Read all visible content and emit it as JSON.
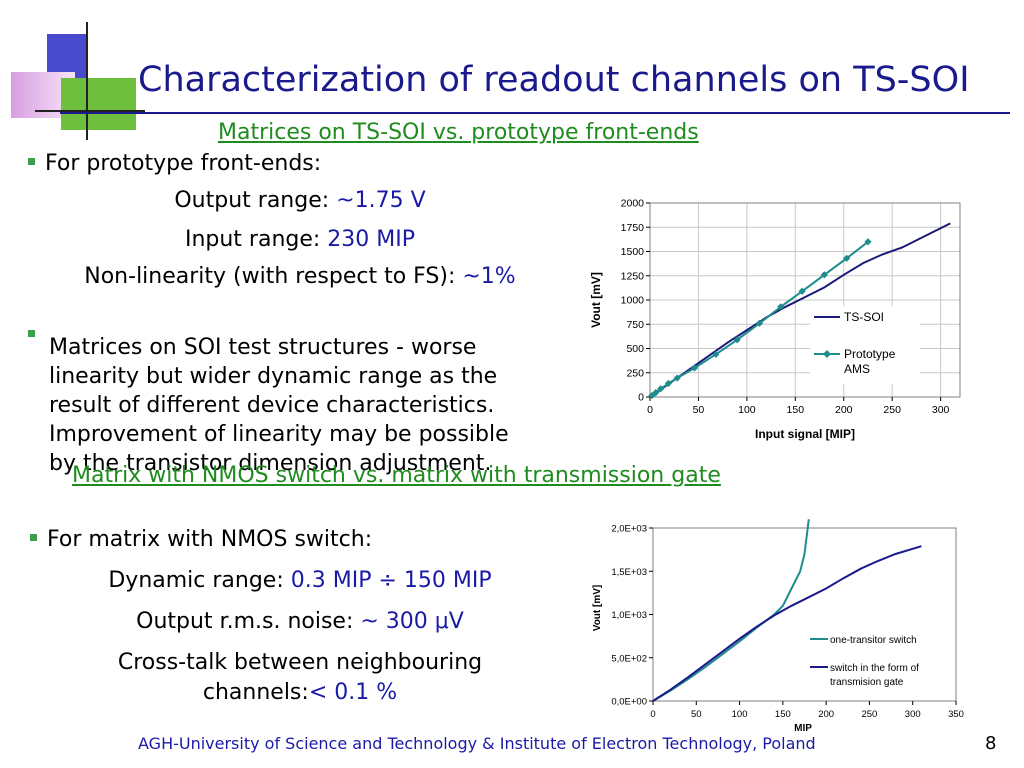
{
  "slide": {
    "title": "Characterization of readout channels on TS-SOI",
    "footer": "AGH-University of Science and Technology & Institute of Electron Technology, Poland",
    "page_number": "8"
  },
  "section1": {
    "heading": "Matrices on TS-SOI vs. prototype front-ends",
    "bullet1": "For prototype front-ends:",
    "output_range_label": "Output range: ",
    "output_range_value": "~1.75 V",
    "input_range_label": "Input range: ",
    "input_range_value": "230 MIP",
    "nonlinearity_label": "Non-linearity (with respect to FS): ",
    "nonlinearity_value": "~1%",
    "bullet2_lines": [
      "Matrices on SOI test structures - worse",
      "linearity but wider dynamic range as the",
      "result of different device characteristics.",
      "Improvement of linearity may be possible",
      "by the transistor dimension adjustment."
    ]
  },
  "section2": {
    "heading": "Matrix with NMOS switch vs. matrix with transmission gate",
    "bullet1": "For matrix with NMOS switch:",
    "dynamic_range_label": "Dynamic range: ",
    "dynamic_range_value": "0.3 MIP ÷ 150 MIP",
    "noise_label": "Output r.m.s. noise: ",
    "noise_value": "~ 300 μV",
    "crosstalk_line1": "Cross-talk between neighbouring",
    "crosstalk_label": "channels:",
    "crosstalk_value": "< 0.1 %"
  },
  "chart_data": [
    {
      "type": "line",
      "xlabel": "Input signal [MIP]",
      "ylabel": "Vout  [mV]",
      "xlim": [
        0,
        320
      ],
      "ylim": [
        0,
        2000
      ],
      "x_ticks": [
        "0",
        "50",
        "100",
        "150",
        "200",
        "250",
        "300"
      ],
      "y_ticks": [
        "0",
        "250",
        "500",
        "750",
        "1000",
        "1250",
        "1500",
        "1750",
        "2000"
      ],
      "grid": true,
      "legend_position": "right",
      "series": [
        {
          "name": "TS-SOI",
          "color": "#1a1a7a",
          "marker": "none",
          "x": [
            0,
            10,
            20,
            40,
            60,
            80,
            100,
            120,
            140,
            160,
            180,
            200,
            220,
            240,
            260,
            280,
            310
          ],
          "y": [
            0,
            70,
            140,
            280,
            420,
            560,
            690,
            820,
            930,
            1030,
            1130,
            1260,
            1380,
            1470,
            1540,
            1640,
            1790
          ]
        },
        {
          "name": "Prototype AMS",
          "color": "#1e8c8c",
          "marker": "diamond",
          "x": [
            2,
            6,
            11,
            19,
            28,
            46,
            68,
            90,
            113,
            135,
            157,
            180,
            203,
            225
          ],
          "y": [
            15,
            45,
            85,
            140,
            195,
            300,
            440,
            590,
            760,
            930,
            1090,
            1260,
            1430,
            1600
          ]
        }
      ]
    },
    {
      "type": "line",
      "xlabel": "MIP",
      "ylabel": "Vout  [mV]",
      "xlim": [
        0,
        350
      ],
      "ylim": [
        0,
        2000
      ],
      "x_ticks": [
        "0",
        "50",
        "100",
        "150",
        "200",
        "250",
        "300",
        "350"
      ],
      "y_ticks": [
        "0,0E+00",
        "5,0E+02",
        "1,0E+03",
        "1,5E+03",
        "2,0E+03"
      ],
      "grid": false,
      "legend_position": "right",
      "series": [
        {
          "name": "one-transitor switch",
          "color": "#1e8c8c",
          "x": [
            0,
            20,
            40,
            60,
            80,
            100,
            120,
            140,
            150,
            160,
            170,
            175,
            180
          ],
          "y": [
            0,
            120,
            250,
            390,
            540,
            690,
            850,
            1000,
            1100,
            1300,
            1500,
            1700,
            2100
          ]
        },
        {
          "name": "switch in the form of transmision gate",
          "color": "#1a1a8c",
          "x": [
            0,
            20,
            40,
            60,
            80,
            100,
            120,
            140,
            160,
            180,
            200,
            220,
            240,
            260,
            280,
            300,
            310
          ],
          "y": [
            0,
            130,
            270,
            420,
            570,
            720,
            860,
            990,
            1100,
            1200,
            1300,
            1420,
            1530,
            1620,
            1700,
            1760,
            1790
          ]
        }
      ]
    }
  ]
}
